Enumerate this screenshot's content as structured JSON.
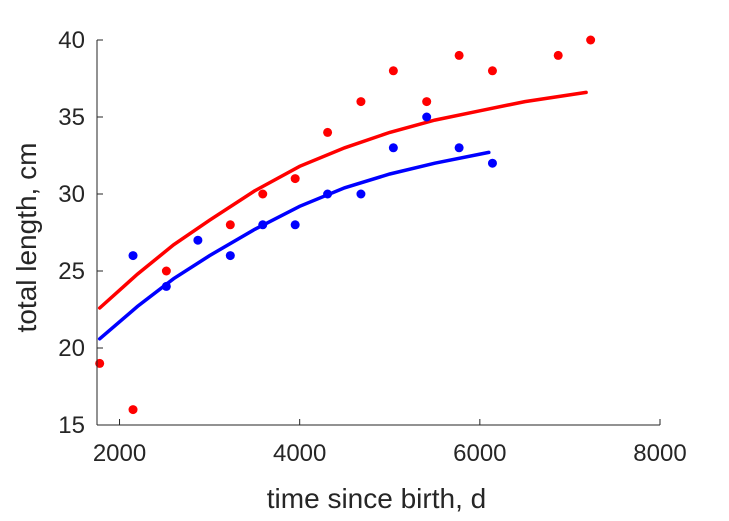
{
  "chart_data": {
    "type": "scatter",
    "title": "",
    "xlabel": "time since birth, d",
    "ylabel": "total length, cm",
    "xlim": [
      1750,
      8000
    ],
    "ylim": [
      15,
      40
    ],
    "xticks": [
      2000,
      4000,
      6000,
      8000
    ],
    "yticks": [
      15,
      20,
      25,
      30,
      35,
      40
    ],
    "xtick_labels": [
      "2000",
      "4000",
      "6000",
      "8000"
    ],
    "ytick_labels": [
      "15",
      "20",
      "25",
      "30",
      "35",
      "40"
    ],
    "grid": false,
    "legend": "none",
    "series": [
      {
        "color": "#ff0000",
        "points": [
          [
            1780,
            19
          ],
          [
            2150,
            16
          ],
          [
            2520,
            25
          ],
          [
            3230,
            28
          ],
          [
            3590,
            30
          ],
          [
            3950,
            31
          ],
          [
            4310,
            34
          ],
          [
            4680,
            36
          ],
          [
            5040,
            38
          ],
          [
            5410,
            36
          ],
          [
            5770,
            39
          ],
          [
            6140,
            38
          ],
          [
            6870,
            39
          ],
          [
            7230,
            40
          ]
        ],
        "fit": [
          [
            1780,
            22.6
          ],
          [
            2200,
            24.8
          ],
          [
            2600,
            26.7
          ],
          [
            3000,
            28.3
          ],
          [
            3500,
            30.2
          ],
          [
            4000,
            31.8
          ],
          [
            4500,
            33.0
          ],
          [
            5000,
            34.0
          ],
          [
            5500,
            34.8
          ],
          [
            6000,
            35.4
          ],
          [
            6500,
            36.0
          ],
          [
            7180,
            36.6
          ]
        ]
      },
      {
        "color": "#0000ff",
        "points": [
          [
            2150,
            26
          ],
          [
            2520,
            24
          ],
          [
            2870,
            27
          ],
          [
            3230,
            26
          ],
          [
            3590,
            28
          ],
          [
            3950,
            28
          ],
          [
            4310,
            30
          ],
          [
            4680,
            30
          ],
          [
            5040,
            33
          ],
          [
            5410,
            35
          ],
          [
            5770,
            33
          ],
          [
            6140,
            32
          ]
        ],
        "fit": [
          [
            1780,
            20.6
          ],
          [
            2200,
            22.7
          ],
          [
            2600,
            24.5
          ],
          [
            3000,
            26.0
          ],
          [
            3500,
            27.7
          ],
          [
            4000,
            29.2
          ],
          [
            4500,
            30.4
          ],
          [
            5000,
            31.3
          ],
          [
            5500,
            32.0
          ],
          [
            6100,
            32.7
          ]
        ]
      }
    ]
  }
}
